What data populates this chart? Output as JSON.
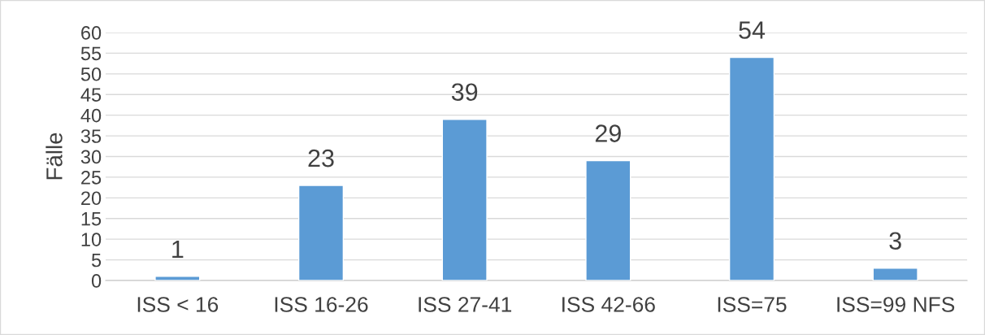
{
  "chart_data": {
    "type": "bar",
    "ylabel": "Fälle",
    "categories": [
      "ISS < 16",
      "ISS 16-26",
      "ISS 27-41",
      "ISS 42-66",
      "ISS=75",
      "ISS=99 NFS"
    ],
    "values": [
      1,
      23,
      39,
      29,
      54,
      3
    ],
    "color": "#5b9bd5",
    "ylim": [
      0,
      60
    ],
    "yticks": [
      0,
      5,
      10,
      15,
      20,
      25,
      30,
      35,
      40,
      45,
      50,
      55,
      60
    ],
    "grid": "y",
    "data_labels": true
  }
}
